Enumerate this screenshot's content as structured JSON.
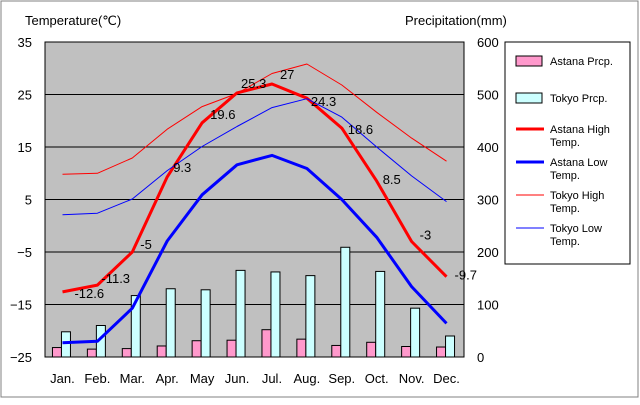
{
  "chart_data": {
    "type": "bar+line",
    "categories": [
      "Jan.",
      "Feb.",
      "Mar.",
      "Apr.",
      "May",
      "Jun.",
      "Jul.",
      "Aug.",
      "Sep.",
      "Oct.",
      "Nov.",
      "Dec."
    ],
    "y_left": {
      "label": "Temperature(℃)",
      "ylim": [
        -25,
        35
      ],
      "ticks": [
        "35",
        "25",
        "15",
        "5",
        "−5",
        "−15",
        "−25"
      ],
      "tick_values": [
        35,
        25,
        15,
        5,
        -5,
        -15,
        -25
      ]
    },
    "y_right": {
      "label": "Precipitation(mm)",
      "ylim": [
        0,
        600
      ],
      "ticks": [
        "600",
        "500",
        "400",
        "300",
        "200",
        "100",
        "0"
      ],
      "tick_values": [
        600,
        500,
        400,
        300,
        200,
        100,
        0
      ]
    },
    "grid": true,
    "legend_position": "right",
    "bar_series": [
      {
        "name": "Astana Prcp.",
        "color": "#ff99cc",
        "values": [
          18,
          15,
          16,
          21,
          31,
          32,
          52,
          34,
          22,
          28,
          20,
          19
        ]
      },
      {
        "name": "Tokyo Prcp.",
        "color": "#ccffff",
        "values": [
          48,
          60,
          117,
          130,
          128,
          165,
          162,
          155,
          209,
          163,
          93,
          40
        ]
      }
    ],
    "line_series": [
      {
        "name": "Astana High Temp.",
        "legend": [
          "Astana High",
          "Temp."
        ],
        "color": "#ff0000",
        "width": 3,
        "values": [
          -12.6,
          -11.3,
          -5,
          9.3,
          19.6,
          25.3,
          27,
          24.3,
          18.6,
          8.5,
          -3,
          -9.7
        ]
      },
      {
        "name": "Astana Low Temp.",
        "legend": [
          "Astana Low",
          "Temp."
        ],
        "color": "#0000ff",
        "width": 3,
        "values": [
          -22.3,
          -22,
          -15.7,
          -2.9,
          5.9,
          11.6,
          13.4,
          10.9,
          5,
          -2.2,
          -11.6,
          -18.6
        ]
      },
      {
        "name": "Tokyo High Temp.",
        "legend": [
          "Tokyo High",
          "Temp."
        ],
        "color": "#ff0000",
        "width": 1,
        "values": [
          9.8,
          10,
          12.9,
          18.4,
          22.7,
          25.2,
          29,
          30.8,
          26.8,
          21.6,
          16.7,
          12.3
        ]
      },
      {
        "name": "Tokyo Low Temp.",
        "legend": [
          "Tokyo Low",
          "Temp."
        ],
        "color": "#0000ff",
        "width": 1,
        "values": [
          2.1,
          2.4,
          5.1,
          10.5,
          15.1,
          18.9,
          22.5,
          24.2,
          20.7,
          15,
          9.5,
          4.6
        ]
      }
    ],
    "data_labels": [
      "-12.6",
      "-11.3",
      "-5",
      "9.3",
      "19.6",
      "25.3",
      "27",
      "24.3",
      "18.6",
      "8.5",
      "-3",
      "-9.7"
    ]
  }
}
